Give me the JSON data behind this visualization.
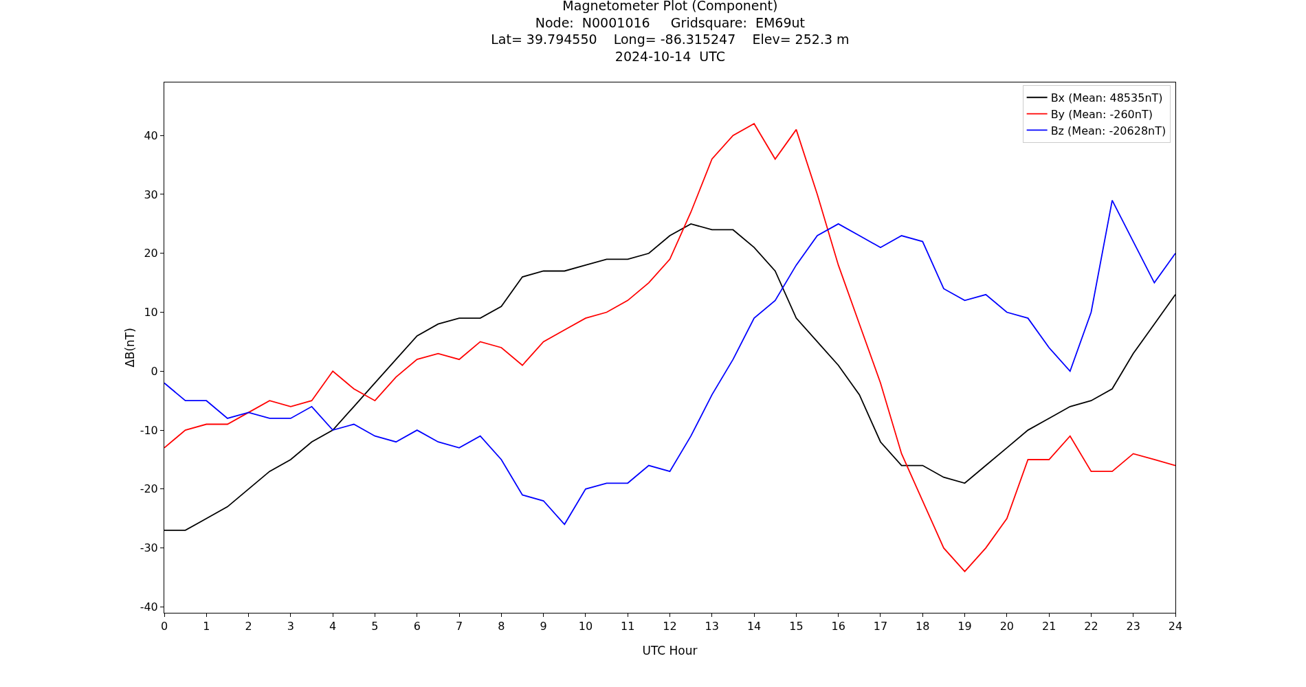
{
  "chart_data": {
    "type": "line",
    "title": "Magnetometer Plot (Component)\nNode:  N0001016     Gridsquare:  EM69ut\nLat= 39.794550    Long= -86.315247    Elev= 252.3 m\n2024-10-14  UTC",
    "xlabel": "UTC Hour",
    "ylabel": "ΔB(nT)",
    "xlim": [
      0,
      24
    ],
    "ylim": [
      -41,
      49
    ],
    "xticks": [
      0,
      1,
      2,
      3,
      4,
      5,
      6,
      7,
      8,
      9,
      10,
      11,
      12,
      13,
      14,
      15,
      16,
      17,
      18,
      19,
      20,
      21,
      22,
      23,
      24
    ],
    "yticks": [
      -40,
      -30,
      -20,
      -10,
      0,
      10,
      20,
      30,
      40
    ],
    "grid": false,
    "legend": "top right",
    "marker": "none",
    "line_style": "solid",
    "x": [
      0,
      0.5,
      1,
      1.5,
      2,
      2.5,
      3,
      3.5,
      4,
      4.5,
      5,
      5.5,
      6,
      6.5,
      7,
      7.5,
      8,
      8.5,
      9,
      9.5,
      10,
      10.5,
      11,
      11.5,
      12,
      12.5,
      13,
      13.5,
      14,
      14.5,
      15,
      15.5,
      16,
      16.5,
      17,
      17.5,
      18,
      18.5,
      19,
      19.5,
      20,
      20.5,
      21,
      21.5,
      22,
      22.5,
      23,
      23.5,
      24
    ],
    "series": [
      {
        "name": "Bx (Mean: 48535nT)",
        "color": "#000000",
        "values": [
          -27,
          -27,
          -25,
          -23,
          -20,
          -17,
          -15,
          -12,
          -10,
          -6,
          -2,
          2,
          6,
          8,
          9,
          9,
          11,
          16,
          17,
          17,
          18,
          19,
          19,
          20,
          23,
          25,
          24,
          24,
          21,
          17,
          9,
          5,
          1,
          -4,
          -12,
          -16,
          -16,
          -18,
          -19,
          -16,
          -13,
          -10,
          -8,
          -6,
          -5,
          -3,
          3,
          8,
          13
        ]
      },
      {
        "name": "By (Mean: -260nT)",
        "color": "#ff0000",
        "values": [
          -13,
          -10,
          -9,
          -9,
          -7,
          -5,
          -6,
          -5,
          0,
          -3,
          -5,
          -1,
          2,
          3,
          2,
          5,
          4,
          1,
          5,
          7,
          9,
          10,
          12,
          15,
          19,
          27,
          36,
          40,
          42,
          36,
          41,
          30,
          18,
          8,
          -2,
          -14,
          -22,
          -30,
          -34,
          -30,
          -25,
          -15,
          -15,
          -11,
          -17,
          -17,
          -14,
          -15,
          -16
        ]
      },
      {
        "name": "Bz (Mean: -20628nT)",
        "color": "#0000ff",
        "values": [
          -2,
          -5,
          -5,
          -8,
          -7,
          -8,
          -8,
          -6,
          -10,
          -9,
          -11,
          -12,
          -10,
          -12,
          -13,
          -11,
          -15,
          -21,
          -22,
          -26,
          -20,
          -19,
          -19,
          -16,
          -17,
          -11,
          -4,
          2,
          9,
          12,
          18,
          23,
          25,
          23,
          21,
          23,
          22,
          14,
          12,
          13,
          10,
          9,
          4,
          0,
          10,
          29,
          22,
          15,
          20
        ]
      }
    ]
  }
}
